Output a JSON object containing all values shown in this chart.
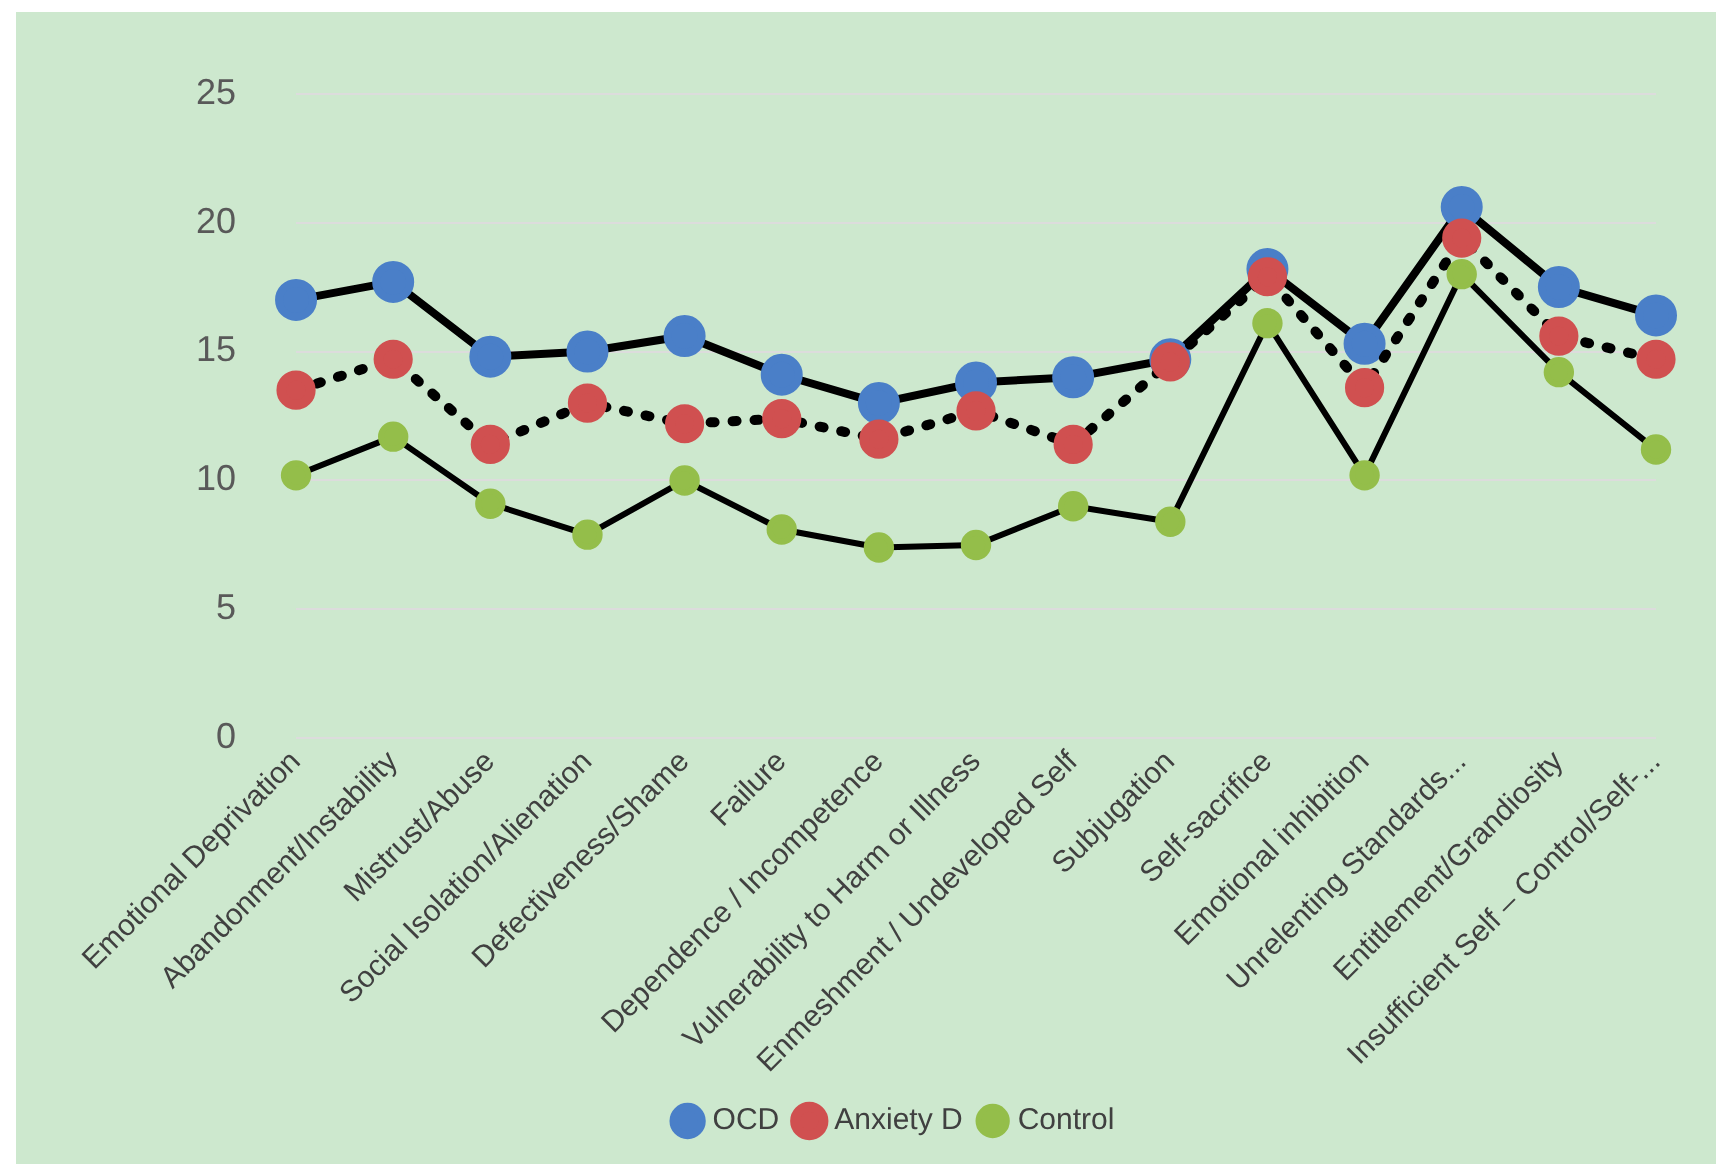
{
  "chart_data": {
    "type": "line",
    "categories": [
      "Emotional Deprivation",
      "Abandonment/Instability",
      "Mistrust/Abuse",
      "Social Isolation/Alienation",
      "Defectiveness/Shame",
      "Failure",
      "Dependence / Incompetence",
      "Vulnerability to Harm or Illness",
      "Enmeshment / Undeveloped Self",
      "Subjugation",
      "Self-sacrifice",
      "Emotional inhibition",
      "Unrelenting Standards...",
      "Entitlement/Grandiosity",
      "Insufficient Self – Control/Self-..."
    ],
    "series": [
      {
        "name": "OCD",
        "color": "#4a7fc8",
        "line_style": "solid",
        "values": [
          17,
          17.7,
          14.8,
          15,
          15.6,
          14.1,
          13,
          13.8,
          14,
          14.7,
          18.2,
          15.3,
          20.6,
          17.5,
          16.4
        ]
      },
      {
        "name": "Anxiety D",
        "color": "#d05050",
        "line_style": "dotted",
        "values": [
          13.5,
          14.7,
          11.4,
          13,
          12.2,
          12.4,
          11.6,
          12.7,
          11.4,
          14.6,
          17.9,
          13.6,
          19.4,
          15.6,
          14.7
        ]
      },
      {
        "name": "Control",
        "color": "#94be4a",
        "line_style": "solid",
        "values": [
          10.2,
          11.7,
          9.1,
          7.9,
          10,
          8.1,
          7.4,
          7.5,
          9,
          8.4,
          16.1,
          10.2,
          18,
          14.2,
          11.2
        ]
      }
    ],
    "ylim": [
      0,
      25
    ],
    "yticks": [
      0,
      5,
      10,
      15,
      20,
      25
    ],
    "grid": "y",
    "legend": "bottom",
    "marker": "circle"
  }
}
